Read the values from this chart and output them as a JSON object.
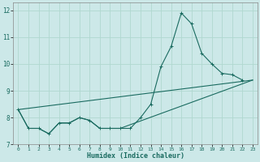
{
  "xlabel": "Humidex (Indice chaleur)",
  "xlim": [
    -0.5,
    23.5
  ],
  "ylim": [
    7,
    12.3
  ],
  "yticks": [
    7,
    8,
    9,
    10,
    11,
    12
  ],
  "xticks": [
    0,
    1,
    2,
    3,
    4,
    5,
    6,
    7,
    8,
    9,
    10,
    11,
    12,
    13,
    14,
    15,
    16,
    17,
    18,
    19,
    20,
    21,
    22,
    23
  ],
  "bg_color": "#cce8e8",
  "grid_color": "#b0d8d0",
  "line_color": "#1a6b60",
  "line1_x": [
    0,
    1,
    2,
    3,
    4,
    5,
    6,
    7,
    8,
    9,
    10,
    11,
    12,
    13,
    14,
    15,
    16,
    17,
    18,
    19,
    20,
    21,
    22
  ],
  "line1_y": [
    8.3,
    7.6,
    7.6,
    7.4,
    7.8,
    7.8,
    8.0,
    7.9,
    7.6,
    7.6,
    7.6,
    7.6,
    8.0,
    8.5,
    9.9,
    10.65,
    11.9,
    11.5,
    10.4,
    10.0,
    9.65,
    9.6,
    9.4
  ],
  "line2_x": [
    0,
    1,
    2,
    3,
    4,
    5,
    6,
    7,
    8,
    9,
    10,
    23
  ],
  "line2_y": [
    8.3,
    7.6,
    7.6,
    7.4,
    7.8,
    7.8,
    8.0,
    7.9,
    7.6,
    7.6,
    7.6,
    9.4
  ],
  "line3_x": [
    0,
    23
  ],
  "line3_y": [
    8.3,
    9.4
  ]
}
